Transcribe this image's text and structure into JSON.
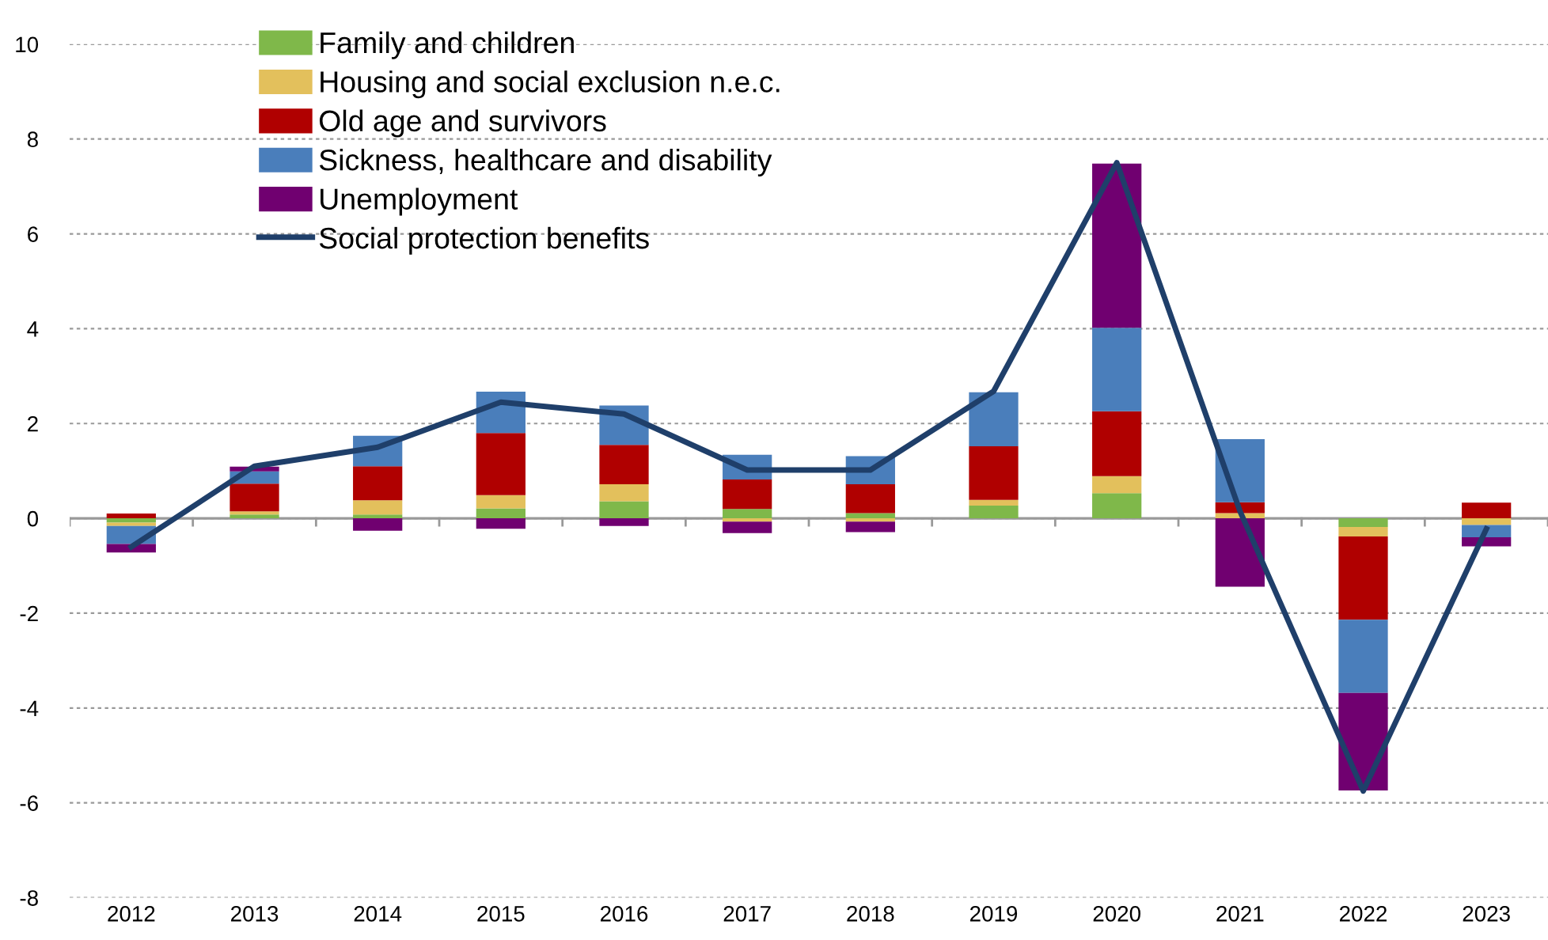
{
  "chart_data": {
    "type": "bar",
    "stacked": true,
    "categories": [
      "2012",
      "2013",
      "2014",
      "2015",
      "2016",
      "2017",
      "2018",
      "2019",
      "2020",
      "2021",
      "2022",
      "2023"
    ],
    "series": [
      {
        "name": "Family and children",
        "color": "#7fb84a",
        "values": [
          -0.09,
          0.08,
          0.08,
          0.21,
          0.36,
          0.2,
          0.11,
          0.27,
          0.53,
          0,
          -0.18,
          0
        ]
      },
      {
        "name": "Housing and social exclusion n.e.c.",
        "color": "#e3c05c",
        "values": [
          -0.07,
          0.07,
          0.3,
          0.28,
          0.36,
          -0.07,
          -0.07,
          0.12,
          0.36,
          0.11,
          -0.2,
          -0.14
        ]
      },
      {
        "name": "Old age and survivors",
        "color": "#b00000",
        "values": [
          0.1,
          0.58,
          0.72,
          1.31,
          0.83,
          0.62,
          0.61,
          1.13,
          1.37,
          0.23,
          -1.76,
          0.33
        ]
      },
      {
        "name": "Sickness, healthcare and disability",
        "color": "#4a7ebb",
        "values": [
          -0.38,
          0.26,
          0.64,
          0.87,
          0.83,
          0.52,
          0.59,
          1.14,
          1.76,
          1.33,
          -1.54,
          -0.26
        ]
      },
      {
        "name": "Unemployment",
        "color": "#700070",
        "values": [
          -0.18,
          0.1,
          -0.26,
          -0.22,
          -0.16,
          -0.24,
          -0.22,
          0,
          3.46,
          -1.44,
          -2.06,
          -0.19
        ]
      },
      {
        "name": "Social protection benefits",
        "type": "line",
        "color": "#1f3f6a",
        "values": [
          -0.6,
          1.1,
          1.5,
          2.45,
          2.2,
          1.02,
          1.02,
          2.68,
          7.5,
          0.15,
          -5.75,
          -0.22
        ]
      }
    ],
    "ylim": [
      -8,
      10
    ],
    "yticks": [
      -8,
      -6,
      -4,
      -2,
      0,
      2,
      4,
      6,
      8,
      10
    ],
    "grid": "y",
    "legend": "top left",
    "marker": "none",
    "line_style": "solid"
  }
}
